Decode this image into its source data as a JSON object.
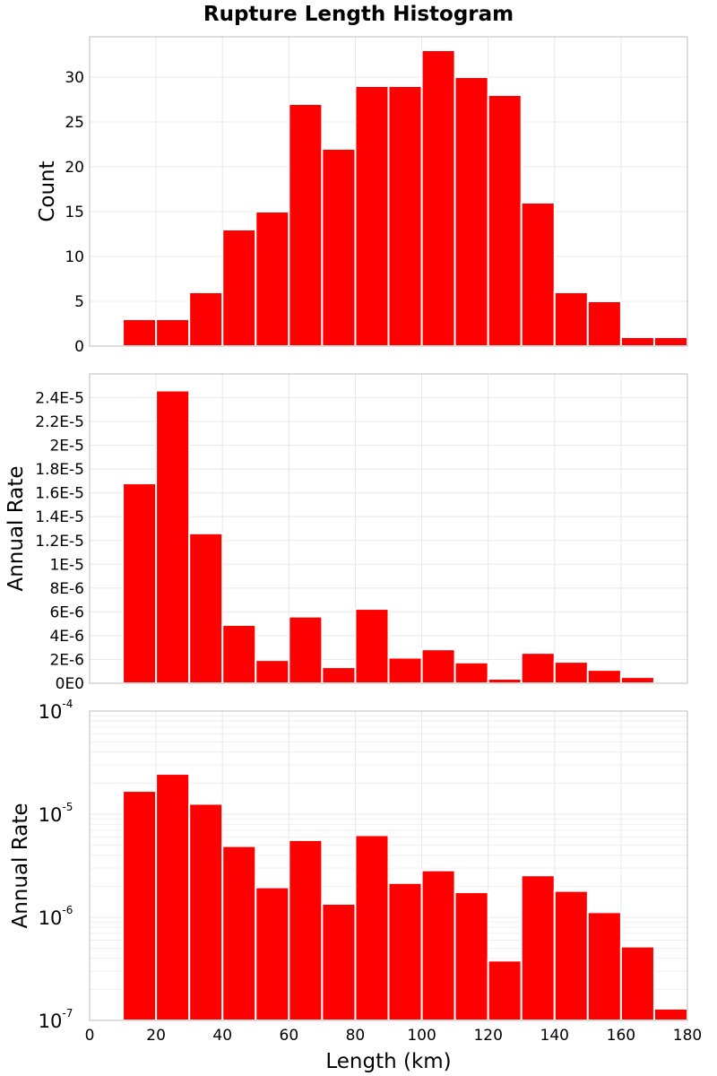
{
  "title": "Rupture Length Histogram",
  "colors": {
    "bar": "#ff0000",
    "bar_edge": "#ffffff",
    "grid": "#e8e8e8",
    "frame": "#bdbdbd"
  },
  "chart_data": [
    {
      "type": "bar",
      "title": "Rupture Length Histogram",
      "xlabel": "",
      "ylabel": "Count",
      "x": [
        15,
        25,
        35,
        45,
        55,
        65,
        75,
        85,
        95,
        105,
        115,
        125,
        135,
        145,
        155,
        165,
        175
      ],
      "values": [
        3,
        3,
        6,
        13,
        15,
        27,
        22,
        29,
        29,
        33,
        30,
        28,
        16,
        6,
        5,
        1,
        1
      ],
      "bin_width": 10,
      "xlim": [
        0,
        180
      ],
      "ylim": [
        0,
        34.5
      ],
      "yticks": [
        0,
        5,
        10,
        15,
        20,
        25,
        30
      ],
      "ytick_labels": [
        "0",
        "5",
        "10",
        "15",
        "20",
        "25",
        "30"
      ],
      "grid": true
    },
    {
      "type": "bar",
      "xlabel": "",
      "ylabel": "Annual Rate",
      "x": [
        15,
        25,
        35,
        45,
        55,
        65,
        75,
        85,
        95,
        105,
        115,
        125,
        135,
        145,
        155,
        165,
        175
      ],
      "values": [
        1.68e-05,
        2.46e-05,
        1.26e-05,
        4.9e-06,
        1.95e-06,
        5.6e-06,
        1.35e-06,
        6.25e-06,
        2.15e-06,
        2.85e-06,
        1.75e-06,
        3.8e-07,
        2.55e-06,
        1.8e-06,
        1.12e-06,
        5.2e-07,
        1.3e-07
      ],
      "bin_width": 10,
      "xlim": [
        0,
        180
      ],
      "ylim": [
        0,
        2.6e-05
      ],
      "yticks": [
        0,
        2e-06,
        4e-06,
        6e-06,
        8e-06,
        1e-05,
        1.2e-05,
        1.4e-05,
        1.6e-05,
        1.8e-05,
        2e-05,
        2.2e-05,
        2.4e-05
      ],
      "ytick_labels": [
        "0E0",
        "2E-6",
        "4E-6",
        "6E-6",
        "8E-6",
        "1E-5",
        "1.2E-5",
        "1.4E-5",
        "1.6E-5",
        "1.8E-5",
        "2E-5",
        "2.2E-5",
        "2.4E-5"
      ],
      "grid": true
    },
    {
      "type": "bar",
      "xlabel": "Length (km)",
      "ylabel": "Annual Rate",
      "yscale": "log",
      "x": [
        15,
        25,
        35,
        45,
        55,
        65,
        75,
        85,
        95,
        105,
        115,
        125,
        135,
        145,
        155,
        165,
        175
      ],
      "values": [
        1.68e-05,
        2.46e-05,
        1.26e-05,
        4.9e-06,
        1.95e-06,
        5.6e-06,
        1.35e-06,
        6.25e-06,
        2.15e-06,
        2.85e-06,
        1.75e-06,
        3.8e-07,
        2.55e-06,
        1.8e-06,
        1.12e-06,
        5.2e-07,
        1.3e-07
      ],
      "bin_width": 10,
      "xlim": [
        0,
        180
      ],
      "ylim": [
        1e-07,
        0.0001
      ],
      "xticks": [
        0,
        20,
        40,
        60,
        80,
        100,
        120,
        140,
        160,
        180
      ],
      "xtick_labels": [
        "0",
        "20",
        "40",
        "60",
        "80",
        "100",
        "120",
        "140",
        "160",
        "180"
      ],
      "ytick_labels": [
        {
          "base": "10",
          "exp": "-7"
        },
        {
          "base": "10",
          "exp": "-6"
        },
        {
          "base": "10",
          "exp": "-5"
        },
        {
          "base": "10",
          "exp": "-4"
        }
      ],
      "grid": true
    }
  ]
}
